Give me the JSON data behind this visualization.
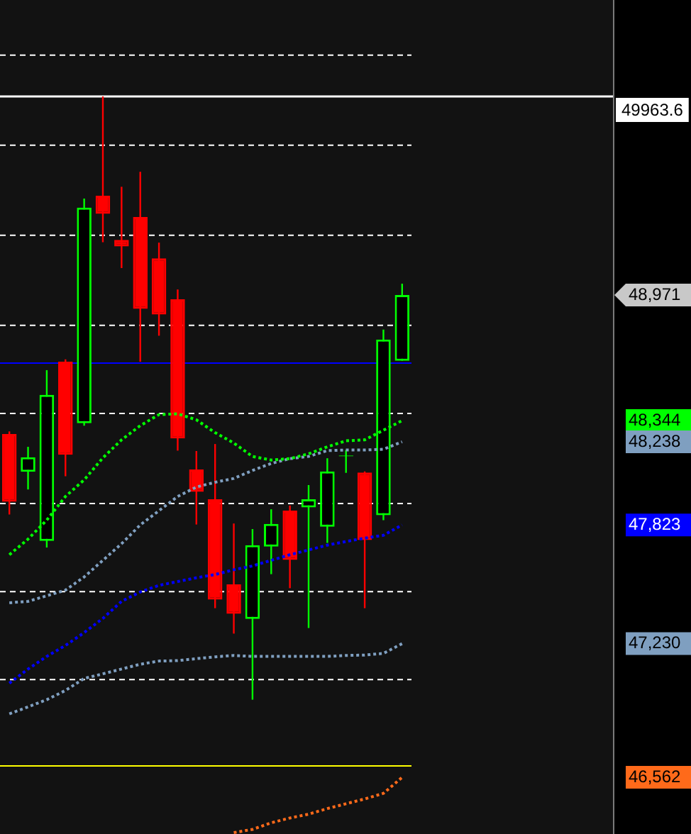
{
  "chart_data": {
    "type": "candlestick",
    "categories": [
      null,
      null,
      null,
      null,
      null,
      null,
      null,
      null,
      null,
      null,
      null,
      null,
      null,
      null,
      null,
      null,
      null,
      null,
      null,
      null,
      null,
      null
    ],
    "ohlc": [
      [
        48277,
        48290,
        47875,
        47939
      ],
      [
        48088,
        48213,
        48000,
        48161
      ],
      [
        47743,
        48596,
        47710,
        48473
      ],
      [
        48638,
        48650,
        48066,
        48173
      ],
      [
        48331,
        49453,
        48319,
        49408
      ],
      [
        49467,
        49963.6,
        49235,
        49377
      ],
      [
        49247,
        49512,
        49106,
        49214
      ],
      [
        49361,
        49587,
        48638,
        48902
      ],
      [
        49155,
        49233,
        48768,
        48874
      ],
      [
        48950,
        48999,
        48194,
        48255
      ],
      [
        48100,
        48192,
        47825,
        47988
      ],
      [
        47951,
        48227,
        47407,
        47450
      ],
      [
        47526,
        47830,
        47280,
        47379
      ],
      [
        47353,
        47802,
        46950,
        47722
      ],
      [
        47715,
        47901,
        47577,
        47828
      ],
      [
        47894,
        47920,
        47507,
        47648
      ],
      [
        47910,
        48022,
        47308,
        47951
      ],
      [
        47814,
        48156,
        47733,
        48090
      ],
      [
        48165,
        48197,
        48083,
        48170
      ],
      [
        48085,
        48090,
        47407,
        47747
      ],
      [
        47871,
        48799,
        47847,
        48749
      ],
      [
        48643,
        49028,
        48643,
        48971
      ]
    ],
    "colors": [
      "#ff0000",
      "#00ff00",
      "#00ff00",
      "#ff0000",
      "#00ff00",
      "#ff0000",
      "#ff0000",
      "#ff0000",
      "#ff0000",
      "#ff0000",
      "#ff0000",
      "#ff0000",
      "#ff0000",
      "#00ff00",
      "#00ff00",
      "#ff0000",
      "#00ff00",
      "#00ff00",
      "#00ff00",
      "#ff0000",
      "#00ff00",
      "#00ff00"
    ],
    "series": [
      {
        "type": "line",
        "color": "#00ff00",
        "line_style": "dotted",
        "values": [
          47674,
          47752,
          47847,
          47965,
          48048,
          48158,
          48248,
          48319,
          48374,
          48378,
          48348,
          48284,
          48232,
          48165,
          48147,
          48154,
          48178,
          48213,
          48243,
          48248,
          48296,
          48344
        ]
      },
      {
        "type": "line",
        "color": "#7f9fc0",
        "line_style": "dotted",
        "values": [
          47434,
          47441,
          47469,
          47497,
          47563,
          47646,
          47729,
          47823,
          47894,
          47965,
          48012,
          48036,
          48055,
          48095,
          48130,
          48154,
          48165,
          48194,
          48197,
          48197,
          48201,
          48238
        ]
      },
      {
        "type": "line",
        "color": "#0000ff",
        "line_style": "dotted",
        "values": [
          47032,
          47103,
          47166,
          47221,
          47285,
          47356,
          47441,
          47488,
          47521,
          47540,
          47559,
          47575,
          47599,
          47618,
          47646,
          47674,
          47698,
          47722,
          47740,
          47757,
          47771,
          47823
        ]
      },
      {
        "type": "line",
        "color": "#7f9fc0",
        "line_style": "dotted",
        "values": [
          46879,
          46914,
          46950,
          46996,
          47056,
          47079,
          47103,
          47127,
          47143,
          47145,
          47155,
          47164,
          47171,
          47166,
          47166,
          47166,
          47166,
          47166,
          47171,
          47173,
          47181,
          47230
        ]
      },
      {
        "type": "line",
        "color": "#ff6a1a",
        "line_style": "dotted",
        "values": [
          null,
          null,
          null,
          null,
          null,
          null,
          null,
          null,
          null,
          null,
          null,
          null,
          46286,
          46302,
          46335,
          46359,
          46378,
          46406,
          46430,
          46454,
          46482,
          46562
        ]
      }
    ],
    "ylim": [
      46279,
      50445
    ],
    "yticks": [
      {
        "value": 48971,
        "label": "48,971"
      },
      {
        "value": 48344,
        "label": "48,344"
      },
      {
        "value": 48238,
        "label": "48,238"
      },
      {
        "value": 47823,
        "label": "47,823"
      },
      {
        "value": 47230,
        "label": "47,230"
      },
      {
        "value": 46562,
        "label": "46,562"
      }
    ],
    "tick_labels": "y",
    "ref_lines": [
      {
        "axis": "y",
        "value": 50170,
        "color": "#ffffff",
        "line_style": "dashed"
      },
      {
        "axis": "y",
        "value": 49720,
        "color": "#ffffff",
        "line_style": "dashed"
      },
      {
        "axis": "y",
        "value": 49270,
        "color": "#ffffff",
        "line_style": "dashed"
      },
      {
        "axis": "y",
        "value": 48820,
        "color": "#ffffff",
        "line_style": "dashed"
      },
      {
        "axis": "y",
        "value": 48380,
        "color": "#ffffff",
        "line_style": "dashed"
      },
      {
        "axis": "y",
        "value": 47930,
        "color": "#ffffff",
        "line_style": "dashed"
      },
      {
        "axis": "y",
        "value": 47490,
        "color": "#ffffff",
        "line_style": "dashed"
      },
      {
        "axis": "y",
        "value": 47050,
        "color": "#ffffff",
        "line_style": "dashed"
      },
      {
        "axis": "y",
        "value": 48631,
        "color": "#0000ff",
        "line_style": "solid"
      },
      {
        "axis": "y",
        "value": 46619,
        "color": "#ffff00",
        "line_style": "solid"
      },
      {
        "axis": "y",
        "value": 49963.6,
        "label": "49963.6",
        "color": "#ffffff",
        "line_style": "solid"
      }
    ]
  }
}
